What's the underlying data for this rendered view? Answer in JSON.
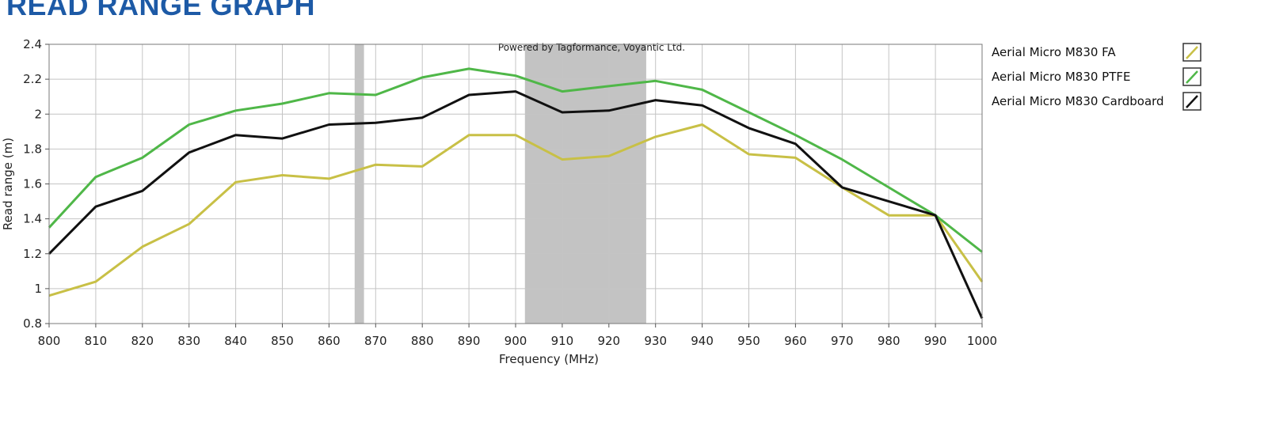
{
  "page": {
    "title": "READ RANGE GRAPH"
  },
  "chart_data": {
    "type": "line",
    "title": "",
    "watermark": "Powered by Tagformance, Voyantic Ltd.",
    "xlabel": "Frequency (MHz)",
    "ylabel": "Read range (m)",
    "xlim": [
      800,
      1000
    ],
    "ylim": [
      0.8,
      2.4
    ],
    "x_ticks": [
      800,
      810,
      820,
      830,
      840,
      850,
      860,
      870,
      880,
      890,
      900,
      910,
      920,
      930,
      940,
      950,
      960,
      970,
      980,
      990,
      1000
    ],
    "y_ticks": [
      0.8,
      1,
      1.2,
      1.4,
      1.6,
      1.8,
      2,
      2.2,
      2.4
    ],
    "y_tick_labels": [
      "0.8",
      "1",
      "1.2",
      "1.4",
      "1.6",
      "1.8",
      "2",
      "2.2",
      "2.4"
    ],
    "grid": true,
    "shaded_bands": [
      {
        "from": 865.5,
        "to": 867.5,
        "color": "#c3c3c3"
      },
      {
        "from": 902,
        "to": 928,
        "color": "#c3c3c3"
      }
    ],
    "legend_placement": "right",
    "x": [
      800,
      810,
      820,
      830,
      840,
      850,
      860,
      870,
      880,
      890,
      900,
      910,
      920,
      930,
      940,
      950,
      960,
      970,
      980,
      990,
      1000
    ],
    "series": [
      {
        "name": "Aerial Micro M830 FA",
        "color": "#c8c046",
        "values": [
          0.96,
          1.04,
          1.24,
          1.37,
          1.61,
          1.65,
          1.63,
          1.71,
          1.7,
          1.88,
          1.88,
          1.74,
          1.76,
          1.87,
          1.94,
          1.77,
          1.75,
          1.58,
          1.42,
          1.42,
          1.04
        ]
      },
      {
        "name": "Aerial Micro M830 PTFE",
        "color": "#4fb748",
        "values": [
          1.35,
          1.64,
          1.75,
          1.94,
          2.02,
          2.06,
          2.12,
          2.11,
          2.21,
          2.26,
          2.22,
          2.13,
          2.16,
          2.19,
          2.14,
          2.01,
          1.88,
          1.74,
          1.58,
          1.42,
          1.21
        ]
      },
      {
        "name": "Aerial Micro M830 Cardboard",
        "color": "#111111",
        "values": [
          1.2,
          1.47,
          1.56,
          1.78,
          1.88,
          1.86,
          1.94,
          1.95,
          1.98,
          2.11,
          2.13,
          2.01,
          2.02,
          2.08,
          2.05,
          1.92,
          1.83,
          1.58,
          null,
          1.42,
          0.83
        ]
      }
    ]
  }
}
